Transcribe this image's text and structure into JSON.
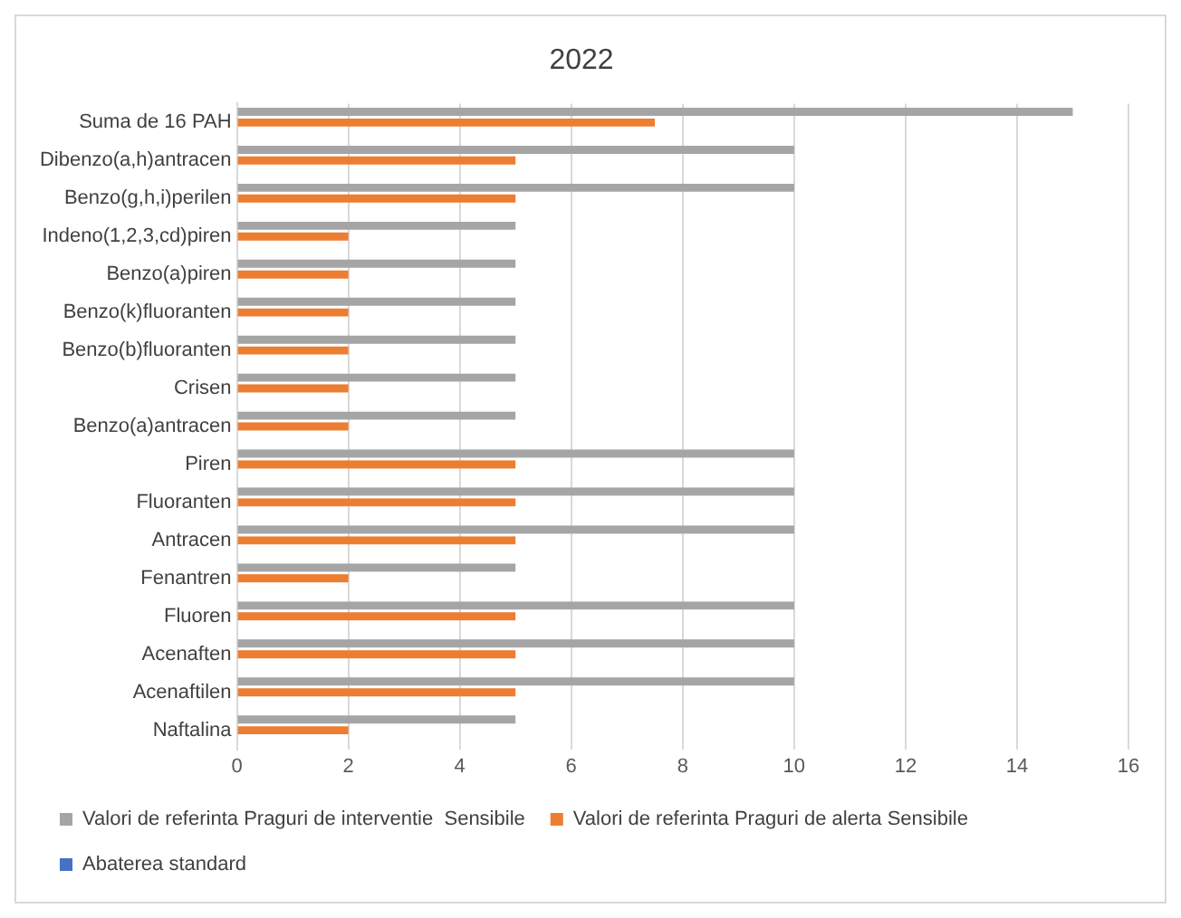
{
  "chart_data": {
    "type": "bar",
    "orientation": "horizontal",
    "title": "2022",
    "categories": [
      "Suma de 16 PAH",
      "Dibenzo(a,h)antracen",
      "Benzo(g,h,i)perilen",
      "Indeno(1,2,3,cd)piren",
      "Benzo(a)piren",
      "Benzo(k)fluoranten",
      "Benzo(b)fluoranten",
      "Crisen",
      "Benzo(a)antracen",
      "Piren",
      "Fluoranten",
      "Antracen",
      "Fenantren",
      "Fluoren",
      "Acenaften",
      "Acenaftilen",
      "Naftalina"
    ],
    "series": [
      {
        "name": "Valori de referinta Praguri de interventie  Sensibile",
        "color": "#a5a5a5",
        "values": [
          15,
          10,
          10,
          5,
          5,
          5,
          5,
          5,
          5,
          10,
          10,
          10,
          5,
          10,
          10,
          10,
          5
        ]
      },
      {
        "name": "Valori de referinta Praguri de alerta Sensibile",
        "color": "#ed7d31",
        "values": [
          7.5,
          5,
          5,
          2,
          2,
          2,
          2,
          2,
          2,
          5,
          5,
          5,
          2,
          5,
          5,
          5,
          2
        ]
      },
      {
        "name": "Abaterea standard",
        "color": "#4472c4",
        "values": [
          null,
          null,
          null,
          null,
          null,
          null,
          null,
          null,
          null,
          null,
          null,
          null,
          null,
          null,
          null,
          null,
          null
        ]
      }
    ],
    "xlim": [
      0,
      16
    ],
    "xticks": [
      0,
      2,
      4,
      6,
      8,
      10,
      12,
      14,
      16
    ],
    "grid": "x",
    "legend": "bottom"
  }
}
